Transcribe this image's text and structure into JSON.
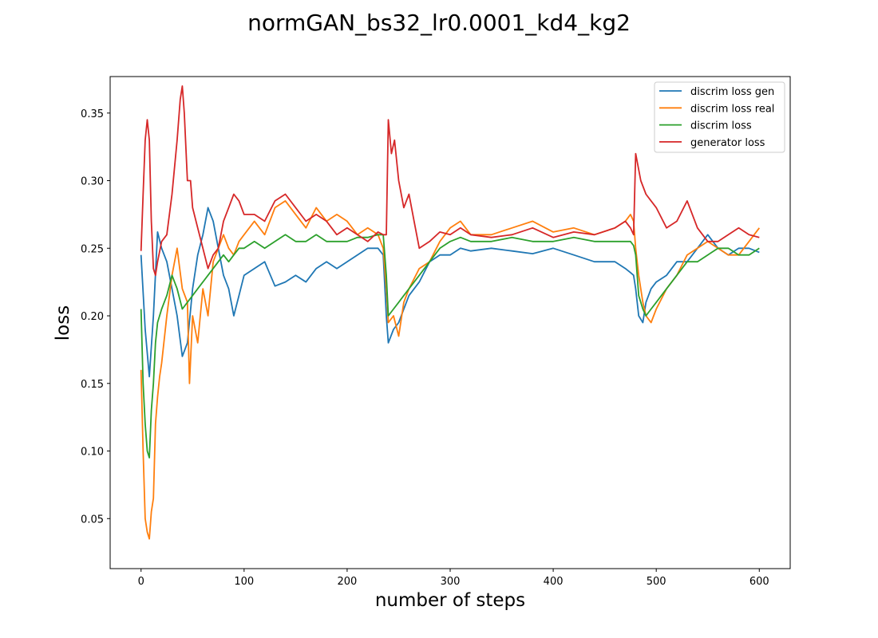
{
  "chart_data": {
    "type": "line",
    "title": "normGAN_bs32_lr0.0001_kd4_kg2",
    "xlabel": "number of steps",
    "ylabel": "loss",
    "xlim": [
      -30,
      630
    ],
    "ylim": [
      0.013,
      0.377
    ],
    "xticks": [
      0,
      100,
      200,
      300,
      400,
      500,
      600
    ],
    "yticks": [
      0.05,
      0.1,
      0.15,
      0.2,
      0.25,
      0.3,
      0.35
    ],
    "ytick_labels": [
      "0.05",
      "0.10",
      "0.15",
      "0.20",
      "0.25",
      "0.30",
      "0.35"
    ],
    "grid": false,
    "legend_position": "top-right",
    "series": [
      {
        "name": "discrim loss gen",
        "color": "#1f77b4",
        "x": [
          0,
          4,
          8,
          12,
          16,
          20,
          25,
          30,
          35,
          40,
          45,
          50,
          55,
          60,
          65,
          70,
          75,
          80,
          85,
          90,
          95,
          100,
          110,
          120,
          130,
          140,
          150,
          160,
          170,
          180,
          190,
          200,
          210,
          220,
          230,
          235,
          238,
          240,
          245,
          250,
          255,
          260,
          270,
          280,
          290,
          300,
          310,
          320,
          340,
          360,
          380,
          400,
          420,
          440,
          460,
          470,
          475,
          478,
          480,
          483,
          487,
          490,
          495,
          500,
          510,
          520,
          530,
          540,
          550,
          560,
          570,
          580,
          590,
          600
        ],
        "y": [
          0.245,
          0.19,
          0.155,
          0.2,
          0.262,
          0.25,
          0.24,
          0.22,
          0.2,
          0.17,
          0.18,
          0.22,
          0.245,
          0.26,
          0.28,
          0.27,
          0.25,
          0.23,
          0.22,
          0.2,
          0.215,
          0.23,
          0.235,
          0.24,
          0.222,
          0.225,
          0.23,
          0.225,
          0.235,
          0.24,
          0.235,
          0.24,
          0.245,
          0.25,
          0.25,
          0.245,
          0.2,
          0.18,
          0.19,
          0.195,
          0.205,
          0.215,
          0.225,
          0.24,
          0.245,
          0.245,
          0.25,
          0.248,
          0.25,
          0.248,
          0.246,
          0.25,
          0.245,
          0.24,
          0.24,
          0.235,
          0.232,
          0.23,
          0.22,
          0.2,
          0.195,
          0.21,
          0.22,
          0.225,
          0.23,
          0.24,
          0.24,
          0.25,
          0.26,
          0.25,
          0.245,
          0.25,
          0.25,
          0.247
        ]
      },
      {
        "name": "discrim loss real",
        "color": "#ff7f0e",
        "x": [
          0,
          2,
          4,
          6,
          8,
          10,
          12,
          14,
          16,
          18,
          20,
          25,
          30,
          35,
          40,
          45,
          47,
          50,
          55,
          60,
          65,
          70,
          75,
          80,
          85,
          90,
          95,
          100,
          110,
          120,
          130,
          140,
          150,
          160,
          170,
          180,
          190,
          200,
          210,
          220,
          230,
          235,
          238,
          240,
          245,
          250,
          255,
          260,
          270,
          280,
          290,
          300,
          310,
          320,
          340,
          360,
          380,
          400,
          420,
          440,
          460,
          470,
          475,
          478,
          480,
          483,
          487,
          490,
          495,
          500,
          510,
          520,
          530,
          540,
          550,
          560,
          570,
          580,
          590,
          600
        ],
        "y": [
          0.16,
          0.1,
          0.05,
          0.04,
          0.035,
          0.055,
          0.065,
          0.12,
          0.14,
          0.155,
          0.165,
          0.2,
          0.23,
          0.25,
          0.22,
          0.21,
          0.15,
          0.2,
          0.18,
          0.22,
          0.2,
          0.24,
          0.25,
          0.26,
          0.25,
          0.245,
          0.255,
          0.26,
          0.27,
          0.26,
          0.28,
          0.285,
          0.275,
          0.265,
          0.28,
          0.27,
          0.275,
          0.27,
          0.26,
          0.265,
          0.26,
          0.25,
          0.22,
          0.195,
          0.2,
          0.185,
          0.21,
          0.22,
          0.235,
          0.24,
          0.255,
          0.265,
          0.27,
          0.26,
          0.26,
          0.265,
          0.27,
          0.262,
          0.265,
          0.26,
          0.265,
          0.27,
          0.275,
          0.27,
          0.25,
          0.23,
          0.21,
          0.2,
          0.195,
          0.205,
          0.22,
          0.23,
          0.245,
          0.25,
          0.255,
          0.25,
          0.245,
          0.245,
          0.255,
          0.265
        ]
      },
      {
        "name": "discrim loss",
        "color": "#2ca02c",
        "x": [
          0,
          2,
          4,
          6,
          8,
          10,
          12,
          14,
          16,
          20,
          25,
          30,
          35,
          40,
          45,
          50,
          55,
          60,
          65,
          70,
          75,
          80,
          85,
          90,
          95,
          100,
          110,
          120,
          130,
          140,
          150,
          160,
          170,
          180,
          190,
          200,
          210,
          220,
          230,
          235,
          238,
          240,
          245,
          250,
          255,
          260,
          270,
          280,
          290,
          300,
          310,
          320,
          340,
          360,
          380,
          400,
          420,
          440,
          460,
          470,
          475,
          478,
          480,
          483,
          487,
          490,
          495,
          500,
          510,
          520,
          530,
          540,
          550,
          560,
          570,
          580,
          590,
          600
        ],
        "y": [
          0.205,
          0.15,
          0.12,
          0.1,
          0.095,
          0.13,
          0.15,
          0.18,
          0.195,
          0.205,
          0.215,
          0.23,
          0.22,
          0.205,
          0.21,
          0.215,
          0.22,
          0.225,
          0.23,
          0.235,
          0.24,
          0.245,
          0.24,
          0.245,
          0.25,
          0.25,
          0.255,
          0.25,
          0.255,
          0.26,
          0.255,
          0.255,
          0.26,
          0.255,
          0.255,
          0.255,
          0.258,
          0.258,
          0.26,
          0.26,
          0.23,
          0.2,
          0.205,
          0.21,
          0.215,
          0.22,
          0.23,
          0.24,
          0.25,
          0.255,
          0.258,
          0.255,
          0.255,
          0.258,
          0.255,
          0.255,
          0.258,
          0.255,
          0.255,
          0.255,
          0.255,
          0.252,
          0.245,
          0.215,
          0.205,
          0.2,
          0.205,
          0.21,
          0.22,
          0.23,
          0.24,
          0.24,
          0.245,
          0.25,
          0.25,
          0.245,
          0.245,
          0.25
        ]
      },
      {
        "name": "generator loss",
        "color": "#d62728",
        "x": [
          0,
          2,
          4,
          6,
          8,
          10,
          12,
          14,
          16,
          20,
          25,
          30,
          35,
          38,
          40,
          42,
          45,
          48,
          50,
          55,
          60,
          65,
          70,
          75,
          80,
          85,
          90,
          95,
          100,
          110,
          120,
          130,
          140,
          150,
          160,
          170,
          180,
          190,
          200,
          210,
          220,
          230,
          235,
          238,
          240,
          243,
          246,
          250,
          255,
          260,
          265,
          270,
          280,
          290,
          300,
          310,
          320,
          340,
          360,
          380,
          400,
          420,
          440,
          460,
          470,
          475,
          478,
          480,
          485,
          490,
          495,
          500,
          510,
          520,
          530,
          540,
          550,
          560,
          570,
          580,
          590,
          600
        ],
        "y": [
          0.248,
          0.29,
          0.33,
          0.345,
          0.33,
          0.27,
          0.235,
          0.23,
          0.24,
          0.255,
          0.26,
          0.29,
          0.33,
          0.36,
          0.37,
          0.35,
          0.3,
          0.3,
          0.28,
          0.265,
          0.25,
          0.235,
          0.245,
          0.25,
          0.27,
          0.28,
          0.29,
          0.285,
          0.275,
          0.275,
          0.27,
          0.285,
          0.29,
          0.28,
          0.27,
          0.275,
          0.27,
          0.26,
          0.265,
          0.26,
          0.255,
          0.262,
          0.26,
          0.26,
          0.345,
          0.32,
          0.33,
          0.3,
          0.28,
          0.29,
          0.27,
          0.25,
          0.255,
          0.262,
          0.26,
          0.265,
          0.26,
          0.258,
          0.26,
          0.265,
          0.258,
          0.262,
          0.26,
          0.265,
          0.27,
          0.265,
          0.26,
          0.32,
          0.3,
          0.29,
          0.285,
          0.28,
          0.265,
          0.27,
          0.285,
          0.265,
          0.255,
          0.255,
          0.26,
          0.265,
          0.26,
          0.258
        ]
      }
    ]
  }
}
